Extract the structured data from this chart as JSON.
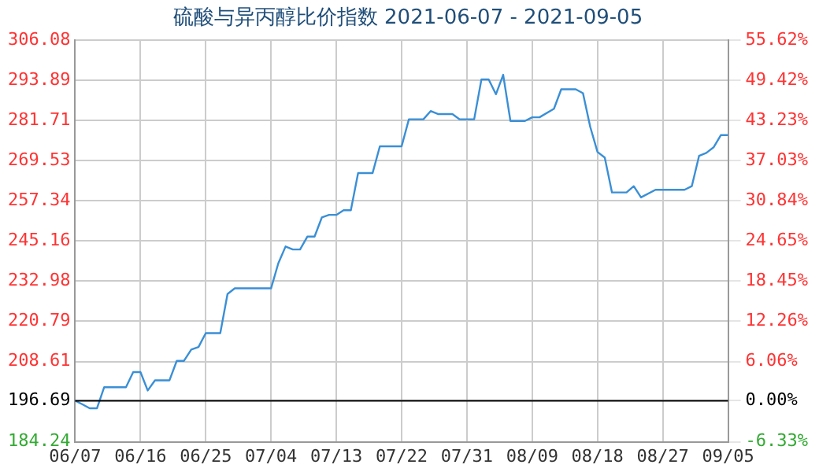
{
  "chart_data": {
    "type": "line",
    "title": "硫酸与异丙醇比价指数 2021-06-07 - 2021-09-05",
    "x": [
      "2021-06-07",
      "2021-06-08",
      "2021-06-09",
      "2021-06-10",
      "2021-06-11",
      "2021-06-14",
      "2021-06-15",
      "2021-06-16",
      "2021-06-17",
      "2021-06-18",
      "2021-06-20",
      "2021-06-21",
      "2021-06-22",
      "2021-06-23",
      "2021-06-24",
      "2021-06-25",
      "2021-06-27",
      "2021-06-28",
      "2021-06-29",
      "2021-07-04",
      "2021-07-05",
      "2021-07-06",
      "2021-07-07",
      "2021-07-08",
      "2021-07-09",
      "2021-07-10",
      "2021-07-11",
      "2021-07-12",
      "2021-07-13",
      "2021-07-14",
      "2021-07-15",
      "2021-07-16",
      "2021-07-18",
      "2021-07-19",
      "2021-07-22",
      "2021-07-23",
      "2021-07-25",
      "2021-07-26",
      "2021-07-27",
      "2021-07-29",
      "2021-07-30",
      "2021-08-01",
      "2021-08-02",
      "2021-08-03",
      "2021-08-04",
      "2021-08-05",
      "2021-08-06",
      "2021-08-08",
      "2021-08-09",
      "2021-08-10",
      "2021-08-12",
      "2021-08-13",
      "2021-08-15",
      "2021-08-16",
      "2021-08-17",
      "2021-08-18",
      "2021-08-19",
      "2021-08-20",
      "2021-08-22",
      "2021-08-23",
      "2021-08-24",
      "2021-08-26",
      "2021-08-30",
      "2021-08-31",
      "2021-09-01",
      "2021-09-02",
      "2021-09-03",
      "2021-09-04",
      "2021-09-05"
    ],
    "series": [
      {
        "color": "#3a8fd6",
        "values": [
          196.69,
          195.6,
          194.4,
          194.4,
          200.8,
          200.8,
          205.4,
          205.4,
          199.8,
          202.9,
          202.9,
          208.8,
          208.8,
          212.2,
          213.0,
          217.2,
          217.2,
          229.1,
          230.8,
          230.8,
          238.4,
          243.5,
          242.6,
          242.6,
          246.5,
          246.5,
          252.3,
          253.1,
          253.1,
          254.5,
          254.5,
          265.8,
          265.8,
          273.9,
          273.9,
          282.1,
          282.1,
          284.6,
          283.7,
          283.7,
          282.1,
          282.1,
          294.2,
          294.2,
          289.7,
          295.6,
          281.6,
          281.6,
          282.7,
          282.7,
          285.3,
          291.2,
          291.2,
          290.0,
          279.8,
          272.2,
          270.5,
          259.9,
          259.9,
          261.8,
          258.4,
          260.7,
          260.7,
          261.8,
          271.0,
          271.9,
          273.6,
          277.3,
          277.3
        ]
      }
    ],
    "xlim": [
      "2021-06-07",
      "2021-09-05"
    ],
    "xticks": [
      {
        "value": "2021-06-07",
        "label": "06/07"
      },
      {
        "value": "2021-06-16",
        "label": "06/16"
      },
      {
        "value": "2021-06-25",
        "label": "06/25"
      },
      {
        "value": "2021-07-04",
        "label": "07/04"
      },
      {
        "value": "2021-07-13",
        "label": "07/13"
      },
      {
        "value": "2021-07-22",
        "label": "07/22"
      },
      {
        "value": "2021-07-31",
        "label": "07/31"
      },
      {
        "value": "2021-08-09",
        "label": "08/09"
      },
      {
        "value": "2021-08-18",
        "label": "08/18"
      },
      {
        "value": "2021-08-27",
        "label": "08/27"
      },
      {
        "value": "2021-09-05",
        "label": "09/05"
      }
    ],
    "ylim": [
      184.24,
      306.08
    ],
    "yticks": [
      184.24,
      196.69,
      208.61,
      220.79,
      232.98,
      245.16,
      257.34,
      269.53,
      281.71,
      293.89,
      306.08
    ],
    "y2lim": [
      -6.33,
      55.62
    ],
    "y2ticks": [
      {
        "value": -6.33,
        "label": "-6.33%"
      },
      {
        "value": 0,
        "label": "0.00%"
      },
      {
        "value": 6.06,
        "label": "6.06%"
      },
      {
        "value": 12.26,
        "label": "12.26%"
      },
      {
        "value": 18.45,
        "label": "18.45%"
      },
      {
        "value": 24.65,
        "label": "24.65%"
      },
      {
        "value": 30.84,
        "label": "30.84%"
      },
      {
        "value": 37.03,
        "label": "37.03%"
      },
      {
        "value": 43.23,
        "label": "43.23%"
      },
      {
        "value": 49.42,
        "label": "49.42%"
      },
      {
        "value": 55.62,
        "label": "55.62%"
      }
    ],
    "ref_lines": [
      {
        "axis": "y2",
        "value": 0,
        "color": "#000000"
      }
    ],
    "grid": true,
    "legend": false,
    "marker": "none",
    "line_style": "solid"
  }
}
